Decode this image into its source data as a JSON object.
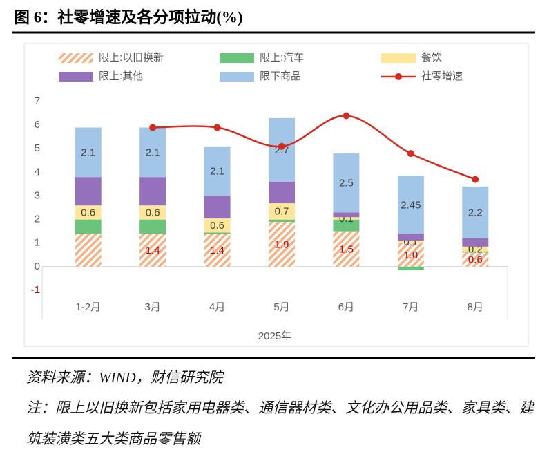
{
  "chart_data": {
    "type": "stacked-bar-line",
    "title": "图 6：社零增速及各分项拉动(%)",
    "categories": [
      "1-2月",
      "3月",
      "4月",
      "5月",
      "6月",
      "7月",
      "8月"
    ],
    "x_label": "2025年",
    "series": [
      {
        "name": "限上:以旧换新",
        "color": "#f4b183",
        "pattern": "hatch",
        "values": [
          1.4,
          1.4,
          1.4,
          1.9,
          1.5,
          1.0,
          0.6
        ],
        "value_labels": [
          null,
          "1.4",
          "1.4",
          "1.9",
          "1.5",
          "1.0",
          "0.6"
        ],
        "label_color": "#c00000"
      },
      {
        "name": "限上:汽车",
        "color": "#6cc47c",
        "values": [
          0.6,
          0.6,
          0.05,
          0.1,
          0.5,
          -0.15,
          0.05
        ]
      },
      {
        "name": "餐饮",
        "color": "#ffe699",
        "values": [
          0.6,
          0.6,
          0.6,
          0.7,
          0.1,
          0.1,
          0.2
        ],
        "value_labels": [
          "0.6",
          "0.6",
          "0.6",
          "0.7",
          "0.1",
          "0.1",
          "0.2"
        ],
        "label_color": "#404040"
      },
      {
        "name": "限上:其他",
        "color": "#9670bd",
        "values": [
          1.2,
          1.2,
          0.95,
          0.9,
          0.2,
          0.3,
          0.35
        ]
      },
      {
        "name": "限下商品",
        "color": "#a3c6e8",
        "values": [
          2.1,
          2.1,
          2.1,
          2.7,
          2.5,
          2.45,
          2.2
        ],
        "value_labels": [
          "2.1",
          "2.1",
          "2.1",
          "2.7",
          "2.5",
          "2.45",
          "2.2"
        ],
        "label_color": "#404040"
      },
      {
        "name": "社零增速",
        "type": "line",
        "color": "#d42a1f",
        "values": [
          null,
          5.9,
          5.9,
          5.1,
          6.4,
          4.8,
          3.7
        ]
      }
    ],
    "ylim": [
      -1,
      7
    ],
    "yticks": [
      -1,
      0,
      1,
      2,
      3,
      4,
      5,
      6,
      7
    ],
    "negative_tick_color": "#c00000",
    "source": "资料来源：WIND，财信研究院",
    "note": "注：限上以旧换新包括家用电器类、通信器材类、文化办公用品类、家具类、建筑装潢类五大类商品零售额"
  }
}
